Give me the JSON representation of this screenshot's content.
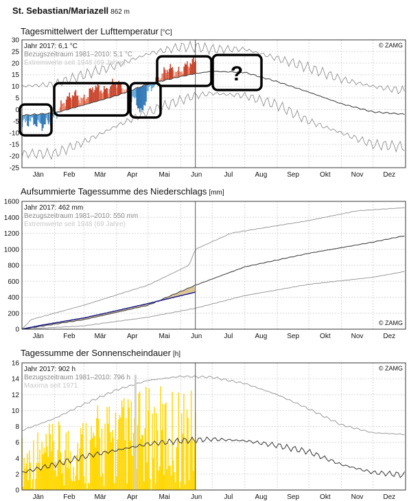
{
  "station": {
    "name": "St. Sebastian/Mariazell",
    "elevation": "862 m"
  },
  "months": [
    "Jän",
    "Feb",
    "Mär",
    "Apr",
    "Mai",
    "Jun",
    "Jul",
    "Aug",
    "Sep",
    "Okt",
    "Nov",
    "Dez"
  ],
  "copyright": "© ZAMG",
  "question_mark": "?",
  "colors": {
    "warm": "#e8846a",
    "warm_dark": "#c9432a",
    "cold": "#6aaad8",
    "cold_dark": "#2f76b6",
    "yellow": "#ffd700",
    "grey": "#999999",
    "dark": "#444444",
    "navy": "#1a1a8c",
    "tan": "#dcc69a"
  },
  "chart_data": [
    {
      "type": "line",
      "title": "Tagesmittelwert der Lufttemperatur",
      "unit": "[°C]",
      "legend": [
        "Jahr 2017: 6,1 °C",
        "Bezugszeitraum 1981–2010: 5,1 °C",
        "Extremwerte seit 1948 (69 Jahre)"
      ],
      "ylim": [
        -25,
        30
      ],
      "yticks": [
        -25,
        -20,
        -15,
        -10,
        -5,
        0,
        5,
        10,
        15,
        20,
        25,
        30
      ],
      "x_unit": "day of year",
      "current_day": 166,
      "series": [
        {
          "name": "Bezugszeitraum 1981–2010",
          "x": [
            1,
            32,
            60,
            91,
            121,
            152,
            166,
            182,
            213,
            244,
            274,
            305,
            335,
            365
          ],
          "values": [
            -2.5,
            -1.5,
            2.0,
            6.0,
            11.0,
            14.2,
            15.5,
            16.5,
            16.0,
            12.0,
            7.5,
            2.5,
            -1.0,
            -2.0
          ]
        },
        {
          "name": "Extremwerte max",
          "x": [
            1,
            32,
            60,
            91,
            121,
            152,
            166,
            182,
            213,
            244,
            274,
            305,
            335,
            365
          ],
          "values": [
            10,
            11,
            15,
            19,
            24,
            27,
            27,
            26,
            26,
            22,
            18,
            13,
            10,
            8
          ]
        },
        {
          "name": "Extremwerte min",
          "x": [
            1,
            32,
            60,
            91,
            121,
            152,
            166,
            182,
            213,
            244,
            274,
            305,
            335,
            365
          ],
          "values": [
            -19,
            -19,
            -14,
            -7,
            -1,
            4,
            6,
            7,
            6,
            2,
            -5,
            -10,
            -15,
            -16
          ]
        },
        {
          "name": "Jahr 2017",
          "x": [
            1,
            10,
            20,
            31,
            40,
            50,
            59,
            70,
            80,
            90,
            100,
            110,
            115,
            120,
            130,
            140,
            150,
            160,
            166
          ],
          "values": [
            -6,
            -5,
            -7,
            -4,
            3,
            7,
            4,
            10,
            8,
            12,
            8,
            3,
            -2,
            7,
            13,
            18,
            16,
            20,
            21
          ]
        }
      ]
    },
    {
      "type": "line",
      "title": "Aufsummierte Tagessumme des Niederschlags",
      "unit": "[mm]",
      "legend": [
        "Jahr 2017: 462 mm",
        "Bezugszeitraum 1981–2010: 550 mm",
        "Extremwerte seit 1948 (69 Jahre)"
      ],
      "ylim": [
        0,
        1600
      ],
      "yticks": [
        0,
        200,
        400,
        600,
        800,
        1000,
        1200,
        1400,
        1600
      ],
      "x_unit": "day of year",
      "current_day": 166,
      "series": [
        {
          "name": "Bezugszeitraum 1981–2010",
          "x": [
            1,
            60,
            121,
            166,
            213,
            274,
            335,
            365
          ],
          "values": [
            0,
            120,
            300,
            550,
            780,
            950,
            1090,
            1170
          ]
        },
        {
          "name": "Extremwerte max",
          "x": [
            1,
            10,
            60,
            121,
            160,
            166,
            200,
            274,
            320,
            365
          ],
          "values": [
            0,
            120,
            300,
            550,
            800,
            1000,
            1200,
            1360,
            1480,
            1520
          ]
        },
        {
          "name": "Extremwerte min",
          "x": [
            1,
            60,
            121,
            166,
            213,
            274,
            335,
            365
          ],
          "values": [
            0,
            40,
            150,
            260,
            420,
            560,
            650,
            720
          ]
        },
        {
          "name": "Jahr 2017",
          "x": [
            1,
            20,
            40,
            60,
            91,
            121,
            140,
            166
          ],
          "values": [
            0,
            50,
            95,
            140,
            230,
            320,
            380,
            462
          ]
        }
      ]
    },
    {
      "type": "bar",
      "title": "Tagessumme der Sonnenscheindauer",
      "unit": "[h]",
      "legend": [
        "Jahr 2017: 902 h",
        "Bezugszeitraum 1981–2010: 796 h",
        "Maxima seit 1971"
      ],
      "ylim": [
        0,
        16
      ],
      "yticks": [
        0,
        2,
        4,
        6,
        8,
        10,
        12,
        14,
        16
      ],
      "x_unit": "day of year",
      "current_day": 166,
      "series": [
        {
          "name": "Bezugszeitraum 1981–2010",
          "x": [
            1,
            32,
            60,
            91,
            121,
            152,
            182,
            213,
            244,
            274,
            305,
            335,
            365
          ],
          "values": [
            2.2,
            3.2,
            4.2,
            5.0,
            5.8,
            6.2,
            6.4,
            6.2,
            5.6,
            4.8,
            3.2,
            2.2,
            1.9
          ]
        },
        {
          "name": "Maxima seit 1971",
          "x": [
            1,
            32,
            60,
            91,
            121,
            152,
            182,
            213,
            244,
            274,
            305,
            335,
            365
          ],
          "values": [
            7.5,
            9.0,
            10.8,
            12.6,
            13.8,
            14.3,
            14.2,
            13.4,
            12.0,
            10.2,
            8.2,
            7.2,
            7.0
          ]
        }
      ]
    }
  ]
}
